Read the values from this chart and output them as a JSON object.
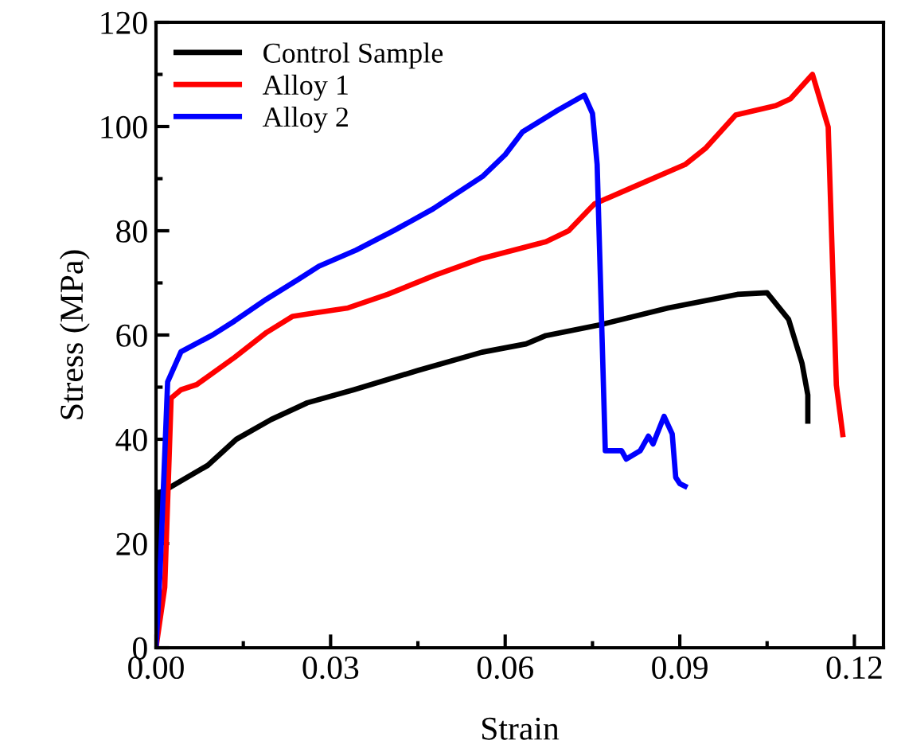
{
  "chart_data": {
    "type": "line",
    "xlabel": "Strain",
    "ylabel": "Stress (MPa)",
    "xlim": [
      0,
      0.125
    ],
    "ylim": [
      0,
      120
    ],
    "xticks": [
      {
        "value": 0,
        "label": "0.00"
      },
      {
        "value": 0.03,
        "label": "0.03"
      },
      {
        "value": 0.06,
        "label": "0.06"
      },
      {
        "value": 0.09,
        "label": "0.09"
      },
      {
        "value": 0.12,
        "label": "0.12"
      }
    ],
    "yticks": [
      0,
      20,
      40,
      60,
      80,
      100,
      120
    ],
    "grid": false,
    "legend": "top left",
    "marker": "none",
    "line_style": "solid",
    "series": [
      {
        "name": "Control Sample",
        "color": "#000000",
        "x": [
          0,
          0.0007,
          0.002,
          0.0089,
          0.0138,
          0.0198,
          0.026,
          0.034,
          0.045,
          0.056,
          0.0636,
          0.067,
          0.0764,
          0.088,
          0.0999,
          0.105,
          0.1087,
          0.111,
          0.112,
          0.112
        ],
        "values": [
          0,
          29.8,
          30.5,
          35,
          40,
          43.8,
          47,
          49.5,
          53.2,
          56.7,
          58.3,
          59.9,
          62,
          65.2,
          67.8,
          68.1,
          63,
          54.6,
          48.5,
          43.5
        ]
      },
      {
        "name": "Alloy 1",
        "color": "#ff0000",
        "x": [
          0,
          0.0015,
          0.0026,
          0.0043,
          0.007,
          0.0135,
          0.019,
          0.0235,
          0.027,
          0.033,
          0.0398,
          0.048,
          0.056,
          0.067,
          0.0709,
          0.0745,
          0.0754,
          0.0818,
          0.0909,
          0.0945,
          0.0996,
          0.1065,
          0.109,
          0.1128,
          0.1155,
          0.1169,
          0.118
        ],
        "values": [
          0,
          11.6,
          47.9,
          49.5,
          50.5,
          55.7,
          60.5,
          63.6,
          64.2,
          65.2,
          67.8,
          71.5,
          74.7,
          77.9,
          80,
          84.2,
          85.2,
          88.3,
          92.7,
          95.9,
          102.2,
          104,
          105.3,
          110,
          99.9,
          50.4,
          40.9
        ]
      },
      {
        "name": "Alloy 2",
        "color": "#0000ff",
        "x": [
          0,
          0.0007,
          0.002,
          0.0043,
          0.0097,
          0.0135,
          0.019,
          0.0245,
          0.028,
          0.0344,
          0.0408,
          0.0476,
          0.0562,
          0.06,
          0.063,
          0.069,
          0.0731,
          0.0736,
          0.075,
          0.0758,
          0.0772,
          0.08,
          0.0808,
          0.0832,
          0.0846,
          0.0854,
          0.0873,
          0.0887,
          0.0893,
          0.09,
          0.0909
        ],
        "values": [
          0,
          14.7,
          51,
          56.8,
          60,
          62.7,
          66.9,
          70.7,
          73.2,
          76.3,
          80,
          84.2,
          90.5,
          94.6,
          99,
          103.1,
          105.7,
          106,
          102.5,
          92.7,
          37.8,
          37.8,
          36.2,
          37.8,
          40.6,
          39.1,
          44.4,
          41,
          32.7,
          31.5,
          31
        ]
      }
    ]
  }
}
